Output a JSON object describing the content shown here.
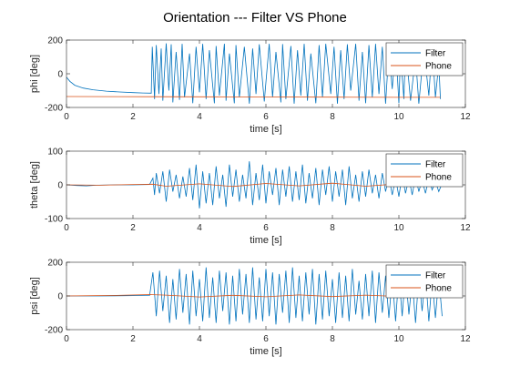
{
  "figure": {
    "title": "Orientation --- Filter VS Phone"
  },
  "colors": {
    "filter": "#0072BD",
    "phone": "#D95319",
    "axes": "#262626",
    "background": "#ffffff"
  },
  "chart_data": [
    {
      "type": "line",
      "xlabel": "time [s]",
      "ylabel": "phi [deg]",
      "xlim": [
        0,
        12
      ],
      "ylim": [
        -200,
        200
      ],
      "xticks": [
        0,
        2,
        4,
        6,
        8,
        10,
        12
      ],
      "yticks": [
        -200,
        0,
        200
      ],
      "grid": false,
      "legend": "top-right",
      "series": [
        {
          "name": "Filter",
          "x": [
            0,
            0.1,
            0.25,
            0.5,
            0.8,
            1.2,
            1.6,
            2.0,
            2.3,
            2.55,
            2.58,
            2.65,
            2.7,
            2.78,
            2.85,
            2.9,
            3.0,
            3.08,
            3.15,
            3.2,
            3.3,
            3.4,
            3.48,
            3.55,
            3.7,
            3.8,
            3.9,
            4.0,
            4.1,
            4.2,
            4.3,
            4.45,
            4.5,
            4.6,
            4.75,
            4.8,
            4.9,
            5.05,
            5.1,
            5.2,
            5.35,
            5.5,
            5.6,
            5.7,
            5.8,
            5.95,
            6.1,
            6.2,
            6.3,
            6.45,
            6.5,
            6.6,
            6.75,
            6.85,
            6.95,
            7.05,
            7.15,
            7.25,
            7.35,
            7.5,
            7.6,
            7.7,
            7.8,
            7.95,
            8.05,
            8.15,
            8.25,
            8.35,
            8.45,
            8.55,
            8.7,
            8.8,
            8.9,
            9.0,
            9.1,
            9.2,
            9.3,
            9.4,
            9.5,
            9.6,
            9.7,
            9.8,
            9.9,
            10.0,
            10.05,
            10.15,
            10.2,
            10.35,
            10.5,
            10.6,
            10.75,
            10.9,
            11.0,
            11.1,
            11.2,
            11.25
          ],
          "y": [
            -20,
            -45,
            -68,
            -85,
            -95,
            -103,
            -108,
            -112,
            -114,
            -115,
            160,
            -150,
            170,
            -120,
            150,
            -160,
            180,
            -100,
            175,
            -170,
            130,
            -155,
            178,
            -140,
            120,
            -175,
            160,
            -110,
            178,
            -150,
            140,
            -175,
            165,
            -130,
            178,
            -160,
            120,
            -175,
            170,
            -140,
            160,
            -178,
            150,
            -120,
            175,
            -165,
            178,
            -140,
            130,
            -170,
            176,
            -150,
            165,
            -178,
            140,
            -130,
            178,
            -160,
            120,
            -175,
            170,
            -140,
            178,
            -120,
            160,
            -178,
            140,
            -150,
            175,
            -100,
            178,
            -160,
            130,
            -175,
            170,
            -140,
            178,
            -120,
            160,
            -178,
            140,
            -90,
            178,
            -175,
            120,
            -150,
            170,
            -160,
            100,
            -178,
            150,
            -130,
            175,
            -140,
            60,
            -150
          ]
        },
        {
          "name": "Phone",
          "x": [
            0,
            2.5,
            4,
            6,
            8,
            10,
            11.25
          ],
          "y": [
            -135,
            -136,
            -137,
            -138,
            -139,
            -140,
            -140
          ]
        }
      ]
    },
    {
      "type": "line",
      "xlabel": "time [s]",
      "ylabel": "theta [deg]",
      "xlim": [
        0,
        12
      ],
      "ylim": [
        -100,
        100
      ],
      "xticks": [
        0,
        2,
        4,
        6,
        8,
        10,
        12
      ],
      "yticks": [
        -100,
        0,
        100
      ],
      "grid": false,
      "legend": "top-right",
      "series": [
        {
          "name": "Filter",
          "x": [
            0,
            0.3,
            0.6,
            0.9,
            1.5,
            2.0,
            2.5,
            2.6,
            2.65,
            2.7,
            2.8,
            2.9,
            3.0,
            3.1,
            3.2,
            3.3,
            3.4,
            3.5,
            3.6,
            3.7,
            3.8,
            3.9,
            4.0,
            4.1,
            4.2,
            4.3,
            4.4,
            4.5,
            4.6,
            4.7,
            4.8,
            4.9,
            5.0,
            5.1,
            5.2,
            5.3,
            5.4,
            5.5,
            5.6,
            5.7,
            5.8,
            5.9,
            6.0,
            6.1,
            6.2,
            6.3,
            6.4,
            6.5,
            6.6,
            6.7,
            6.8,
            6.9,
            7.0,
            7.1,
            7.2,
            7.3,
            7.4,
            7.5,
            7.6,
            7.7,
            7.8,
            7.9,
            8.0,
            8.1,
            8.2,
            8.3,
            8.4,
            8.5,
            8.6,
            8.7,
            8.8,
            8.9,
            9.0,
            9.1,
            9.2,
            9.3,
            9.4,
            9.5,
            9.6,
            9.7,
            9.8,
            9.9,
            10.0,
            10.1,
            10.2,
            10.3,
            10.4,
            10.5,
            10.6,
            10.7,
            10.8,
            10.9,
            11.0,
            11.1,
            11.2,
            11.3
          ],
          "y": [
            0,
            -2,
            -3,
            -1,
            0,
            0,
            1,
            20,
            -30,
            35,
            -25,
            40,
            -50,
            45,
            -20,
            30,
            -40,
            25,
            -35,
            50,
            -45,
            60,
            -70,
            40,
            -55,
            35,
            -60,
            55,
            -40,
            30,
            -65,
            60,
            -35,
            45,
            -50,
            30,
            -40,
            70,
            -60,
            35,
            -45,
            60,
            -55,
            40,
            -30,
            50,
            -60,
            45,
            -35,
            55,
            -50,
            40,
            -45,
            60,
            -55,
            35,
            -40,
            50,
            -60,
            45,
            -30,
            55,
            -50,
            40,
            -35,
            45,
            -60,
            55,
            -40,
            30,
            -50,
            40,
            -35,
            45,
            -25,
            30,
            -40,
            35,
            -20,
            25,
            -30,
            20,
            -35,
            30,
            -25,
            20,
            -30,
            25,
            -20,
            15,
            -25,
            20,
            -15,
            10,
            -20,
            5
          ]
        },
        {
          "name": "Phone",
          "x": [
            0,
            1,
            2,
            2.6,
            3,
            4,
            5,
            6,
            7,
            8,
            9,
            10,
            11.3
          ],
          "y": [
            0,
            -1,
            1,
            2,
            -4,
            3,
            -5,
            4,
            -3,
            5,
            -4,
            3,
            0
          ]
        }
      ]
    },
    {
      "type": "line",
      "xlabel": "time [s]",
      "ylabel": "psi [deg]",
      "xlim": [
        0,
        12
      ],
      "ylim": [
        -200,
        200
      ],
      "xticks": [
        0,
        2,
        4,
        6,
        8,
        10,
        12
      ],
      "yticks": [
        -200,
        0,
        200
      ],
      "grid": false,
      "legend": "top-right",
      "series": [
        {
          "name": "Filter",
          "x": [
            0,
            1.0,
            2.0,
            2.5,
            2.6,
            2.7,
            2.8,
            2.9,
            3.0,
            3.1,
            3.2,
            3.3,
            3.4,
            3.5,
            3.6,
            3.7,
            3.8,
            3.9,
            4.0,
            4.1,
            4.2,
            4.3,
            4.4,
            4.5,
            4.6,
            4.7,
            4.8,
            4.9,
            5.0,
            5.1,
            5.2,
            5.3,
            5.4,
            5.5,
            5.6,
            5.7,
            5.8,
            5.9,
            6.0,
            6.1,
            6.2,
            6.3,
            6.4,
            6.5,
            6.6,
            6.7,
            6.8,
            6.9,
            7.0,
            7.1,
            7.2,
            7.3,
            7.4,
            7.5,
            7.6,
            7.7,
            7.8,
            7.9,
            8.0,
            8.1,
            8.2,
            8.3,
            8.4,
            8.5,
            8.6,
            8.7,
            8.8,
            8.9,
            9.0,
            9.1,
            9.2,
            9.3,
            9.4,
            9.5,
            9.6,
            9.7,
            9.8,
            9.9,
            10.0,
            10.1,
            10.2,
            10.3,
            10.4,
            10.5,
            10.6,
            10.7,
            10.8,
            10.9,
            11.0,
            11.1,
            11.2,
            11.3
          ],
          "y": [
            0,
            0,
            2,
            3,
            140,
            -120,
            150,
            -90,
            120,
            -160,
            100,
            -140,
            160,
            -100,
            130,
            -170,
            150,
            -120,
            100,
            -150,
            170,
            -130,
            110,
            -160,
            150,
            -90,
            140,
            -170,
            120,
            -150,
            160,
            -110,
            130,
            -160,
            170,
            -140,
            110,
            -150,
            160,
            -120,
            140,
            -170,
            130,
            -100,
            150,
            -160,
            170,
            -130,
            120,
            -150,
            140,
            -110,
            160,
            -170,
            130,
            -140,
            150,
            -120,
            100,
            -160,
            140,
            -130,
            120,
            -150,
            160,
            -110,
            90,
            -140,
            130,
            -120,
            150,
            -160,
            140,
            -100,
            120,
            -130,
            110,
            -150,
            130,
            -120,
            140,
            -110,
            100,
            -160,
            120,
            -90,
            130,
            -150,
            100,
            -130,
            110,
            -120
          ]
        },
        {
          "name": "Phone",
          "x": [
            0,
            1.5,
            2.5,
            3,
            4,
            5,
            6,
            7,
            8,
            9,
            10,
            11.3
          ],
          "y": [
            0,
            3,
            8,
            5,
            -6,
            4,
            -5,
            6,
            -4,
            5,
            -3,
            0
          ]
        }
      ]
    }
  ]
}
